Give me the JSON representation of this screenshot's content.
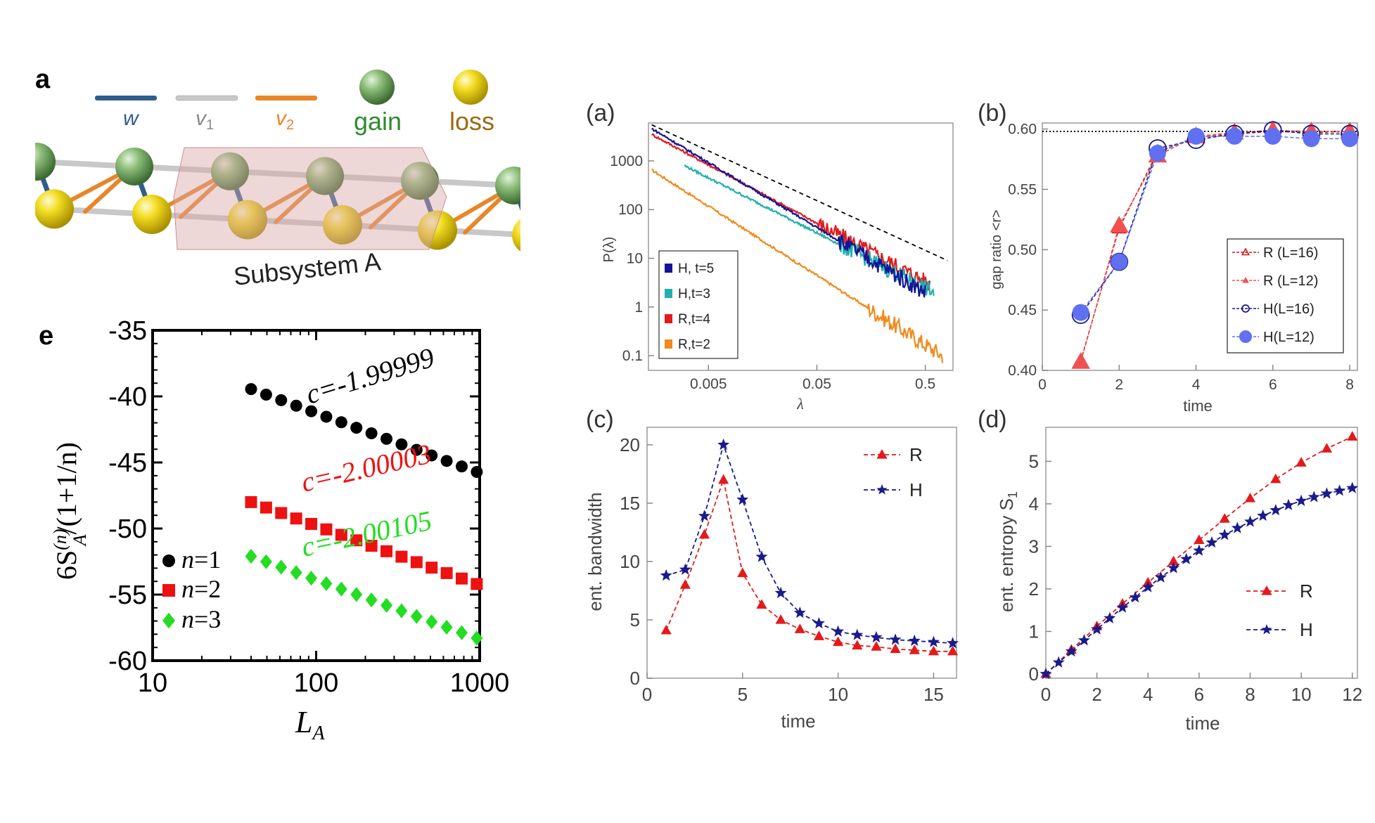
{
  "figure": {
    "lattice": {
      "panel_label": "a",
      "legend": {
        "w": "w",
        "v1": "v",
        "v1_sub": "1",
        "v2": "v",
        "v2_sub": "2",
        "gain": "gain",
        "loss": "loss"
      },
      "subsystem_label": "Subsystem A",
      "colors": {
        "w": "#2f5d8e",
        "v1": "#c8c8c8",
        "v2": "#e8862a",
        "gain": "#5f9a52",
        "loss": "#e3c400",
        "subsystem": "#d9a7a7"
      }
    },
    "panel_e": {
      "label": "e",
      "ylabel_main": "6S",
      "ylabel_sup": "(n)",
      "ylabel_sub": "A",
      "ylabel_tail": "/(1+1/n)",
      "xlabel_main": "L",
      "xlabel_sub": "A"
    },
    "panel_a": {
      "label": "(a)",
      "ylabel": "P(λ)",
      "xlabel": "λ"
    },
    "panel_b": {
      "label": "(b)",
      "ylabel": "gap ratio <r>",
      "xlabel": "time"
    },
    "panel_c": {
      "label": "(c)",
      "ylabel": "ent. bandwidth",
      "xlabel": "time"
    },
    "panel_d": {
      "label": "(d)",
      "ylabel_main": "ent. entropy S",
      "ylabel_sub": "1",
      "xlabel": "time"
    }
  },
  "chart_data": [
    {
      "id": "e",
      "type": "scatter",
      "xscale": "log",
      "xlim": [
        10,
        1000
      ],
      "ylim": [
        -60,
        -35
      ],
      "xticks": [
        10,
        100,
        1000
      ],
      "yticks": [
        -60,
        -55,
        -50,
        -45,
        -40,
        -35
      ],
      "legend_position": "bottom-left",
      "series": [
        {
          "name": "n=1",
          "label_n": "n",
          "label_val": "=1",
          "color": "#000000",
          "marker": "circle",
          "x0": 40,
          "x1": 960,
          "y0": -39.45,
          "y1": -45.72,
          "n": 16,
          "annotation": "c=-1.99999"
        },
        {
          "name": "n=2",
          "label_n": "n",
          "label_val": "=2",
          "color": "#ee1111",
          "marker": "square",
          "x0": 40,
          "x1": 960,
          "y0": -48.0,
          "y1": -54.2,
          "n": 16,
          "annotation": "c=-2.00003"
        },
        {
          "name": "n=3",
          "label_n": "n",
          "label_val": "=3",
          "color": "#22dd22",
          "marker": "diamond",
          "x0": 40,
          "x1": 960,
          "y0": -52.1,
          "y1": -58.3,
          "n": 16,
          "annotation": "c=-2.00105"
        }
      ]
    },
    {
      "id": "a",
      "type": "line",
      "xscale": "log",
      "yscale": "log",
      "xlim": [
        0.0014,
        0.9
      ],
      "ylim": [
        0.05,
        6000
      ],
      "xticks": [
        0.005,
        0.05,
        0.5
      ],
      "xtick_labels": [
        "0.005",
        "0.05",
        "0.5"
      ],
      "yticks": [
        0.1,
        1,
        10,
        100,
        1000
      ],
      "ytick_labels": [
        "0.1",
        "1",
        "10",
        "100",
        "1000"
      ],
      "legend_position": "bottom-left",
      "reference_line": {
        "style": "dashed",
        "color": "#000000",
        "points": [
          [
            0.0015,
            5500
          ],
          [
            0.8,
            9
          ]
        ]
      },
      "series": [
        {
          "name": "H, t=5",
          "color": "#141496",
          "start": [
            0.0015,
            4600
          ],
          "end": [
            0.5,
            2
          ],
          "noise_from": 0.08
        },
        {
          "name": "H,t=3",
          "color": "#20b0b0",
          "start": [
            0.003,
            800
          ],
          "end": [
            0.6,
            2
          ],
          "noise_from": 0.08
        },
        {
          "name": "R,t=4",
          "color": "#e41a1a",
          "start": [
            0.0015,
            3500
          ],
          "end": [
            0.55,
            3
          ],
          "noise_from": 0.05
        },
        {
          "name": "R,t=2",
          "color": "#f08a1d",
          "start": [
            0.0015,
            650
          ],
          "end": [
            0.72,
            0.1
          ],
          "noise_from": 0.15
        }
      ]
    },
    {
      "id": "b",
      "type": "line",
      "xlim": [
        0,
        8.2
      ],
      "ylim": [
        0.4,
        0.605
      ],
      "xticks": [
        0,
        2,
        4,
        6,
        8
      ],
      "yticks": [
        0.4,
        0.45,
        0.5,
        0.55,
        0.6
      ],
      "ytick_labels": [
        "0.40",
        "0.45",
        "0.50",
        "0.55",
        "0.60"
      ],
      "reference_line": {
        "style": "dotted",
        "y": 0.598,
        "color": "#000000"
      },
      "legend_position": "right",
      "x": [
        1,
        2,
        3,
        4,
        5,
        6,
        7,
        8
      ],
      "series": [
        {
          "name": "R (L=16)",
          "color": "#c81a1a",
          "marker": "triangle-open",
          "values": [
            0.408,
            0.518,
            0.581,
            0.593,
            0.596,
            0.598,
            0.597,
            0.598
          ]
        },
        {
          "name": "R (L=12)",
          "color": "#f05050",
          "marker": "triangle",
          "values": [
            0.407,
            0.52,
            0.578,
            0.594,
            0.597,
            0.599,
            0.598,
            0.598
          ]
        },
        {
          "name": "H(L=16)",
          "color": "#1a1a8c",
          "marker": "circle-open",
          "values": [
            0.446,
            0.49,
            0.584,
            0.591,
            0.596,
            0.599,
            0.596,
            0.596
          ]
        },
        {
          "name": "H(L=12)",
          "color": "#6070f0",
          "marker": "circle",
          "values": [
            0.448,
            0.49,
            0.58,
            0.594,
            0.594,
            0.594,
            0.592,
            0.592
          ]
        }
      ]
    },
    {
      "id": "c",
      "type": "line",
      "xlim": [
        0,
        16.2
      ],
      "ylim": [
        0,
        21.5
      ],
      "xticks": [
        0,
        5,
        10,
        15
      ],
      "yticks": [
        0,
        5,
        10,
        15,
        20
      ],
      "legend_position": "top-right",
      "x": [
        1,
        2,
        3,
        4,
        5,
        6,
        7,
        8,
        9,
        10,
        11,
        12,
        13,
        14,
        15,
        16
      ],
      "series": [
        {
          "name": "R",
          "color": "#e41a1a",
          "marker": "triangle",
          "values": [
            4.1,
            8.0,
            12.3,
            17.0,
            9.0,
            6.3,
            5.0,
            4.2,
            3.6,
            3.1,
            2.8,
            2.7,
            2.5,
            2.4,
            2.3,
            2.3
          ]
        },
        {
          "name": "H",
          "color": "#1a1a8c",
          "marker": "star",
          "values": [
            8.8,
            9.3,
            13.9,
            20.0,
            15.3,
            10.4,
            7.3,
            5.6,
            4.7,
            4.0,
            3.7,
            3.5,
            3.3,
            3.2,
            3.1,
            3.0
          ]
        }
      ]
    },
    {
      "id": "d",
      "type": "line",
      "xlim": [
        0,
        12.2
      ],
      "ylim": [
        -0.1,
        5.8
      ],
      "xticks": [
        0,
        2,
        4,
        6,
        8,
        10,
        12
      ],
      "yticks": [
        0,
        1,
        2,
        3,
        4,
        5
      ],
      "legend_position": "bottom-right",
      "series": [
        {
          "name": "R",
          "color": "#e41a1a",
          "marker": "triangle",
          "x": [
            0,
            1,
            2,
            3,
            4,
            5,
            6,
            7,
            8,
            9,
            10,
            11,
            12
          ],
          "values": [
            0,
            0.57,
            1.12,
            1.65,
            2.15,
            2.65,
            3.15,
            3.65,
            4.13,
            4.58,
            4.97,
            5.3,
            5.58
          ]
        },
        {
          "name": "H",
          "color": "#1a1a8c",
          "marker": "star",
          "x": [
            0,
            0.5,
            1,
            1.5,
            2,
            2.5,
            3,
            3.5,
            4,
            4.5,
            5,
            5.5,
            6,
            6.5,
            7,
            7.5,
            8,
            8.5,
            9,
            9.5,
            10,
            10.5,
            11,
            11.5,
            12
          ],
          "values": [
            0,
            0.27,
            0.53,
            0.79,
            1.05,
            1.31,
            1.56,
            1.8,
            2.04,
            2.27,
            2.49,
            2.7,
            2.9,
            3.09,
            3.27,
            3.43,
            3.58,
            3.72,
            3.85,
            3.97,
            4.07,
            4.16,
            4.24,
            4.31,
            4.37
          ]
        }
      ]
    }
  ]
}
